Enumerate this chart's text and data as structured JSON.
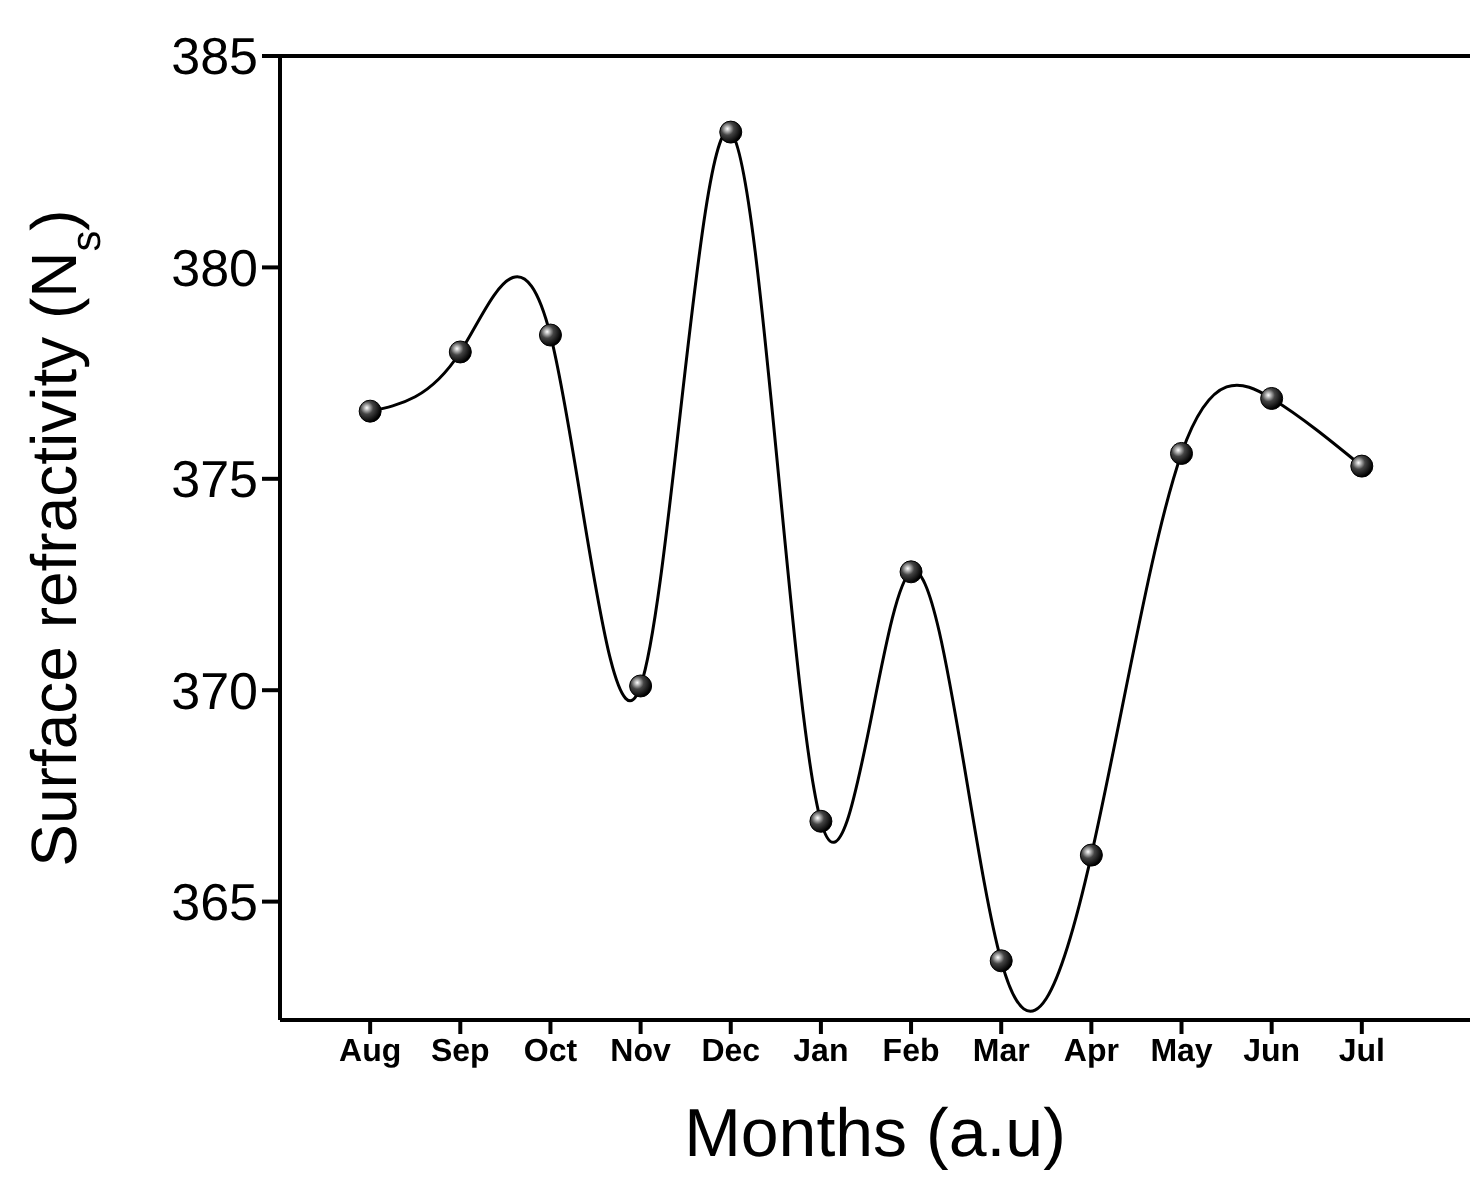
{
  "chart_data": {
    "type": "line",
    "xlabel": "Months (a.u)",
    "ylabel": "Surface refractivity (N$_{s}$)",
    "categories": [
      "Aug",
      "Sep",
      "Oct",
      "Nov",
      "Dec",
      "Jan",
      "Feb",
      "Mar",
      "Apr",
      "May",
      "Jun",
      "Jul"
    ],
    "series": [
      {
        "color": "#000000",
        "values": [
          376.6,
          378.0,
          378.4,
          370.1,
          383.2,
          366.9,
          372.8,
          363.6,
          366.1,
          375.6,
          376.9,
          375.3
        ]
      }
    ],
    "ylim": [
      362.2,
      385
    ],
    "yticks": [
      365,
      370,
      375,
      380,
      385
    ],
    "marker": "circle",
    "line_style": "solid"
  }
}
